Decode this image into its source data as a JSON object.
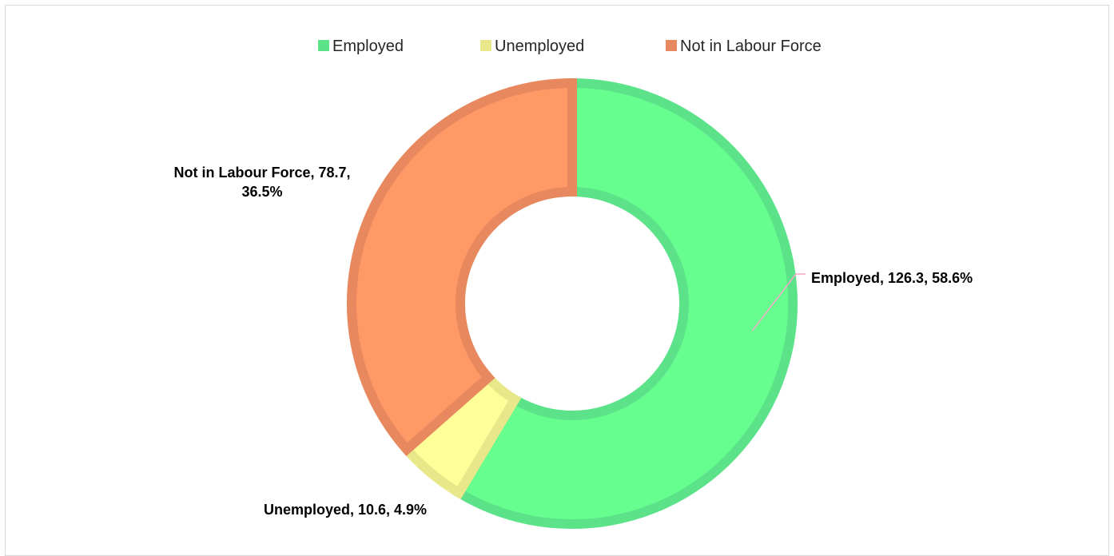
{
  "chart_data": {
    "type": "pie",
    "subtype": "donut",
    "title": "",
    "legend_position": "top",
    "slices": [
      {
        "name": "Employed",
        "value": 126.3,
        "percent": "58.6%",
        "label": "Employed, 126.3, 58.6%",
        "label_lines": [
          "Employed, 126.3, 58.6%"
        ],
        "fill": "#66ff8f",
        "stroke": "#5ce38a"
      },
      {
        "name": "Unemployed",
        "value": 10.6,
        "percent": "4.9%",
        "label": "Unemployed, 10.6, 4.9%",
        "label_lines": [
          "Unemployed, 10.6, 4.9%"
        ],
        "fill": "#ffff99",
        "stroke": "#e8e88a"
      },
      {
        "name": "Not in Labour Force",
        "value": 78.7,
        "percent": "36.5%",
        "label": "Not in Labour Force, 78.7, 36.5%",
        "label_lines": [
          "Not in Labour Force, 78.7,",
          "36.5%"
        ],
        "fill": "#ff9966",
        "stroke": "#e8885e"
      }
    ],
    "legend": [
      {
        "name": "Employed",
        "color": "#5ce38a"
      },
      {
        "name": "Unemployed",
        "color": "#e8e88a"
      },
      {
        "name": "Not in Labour Force",
        "color": "#e8885e"
      }
    ],
    "leader_line_color": "#f4a6c8"
  }
}
